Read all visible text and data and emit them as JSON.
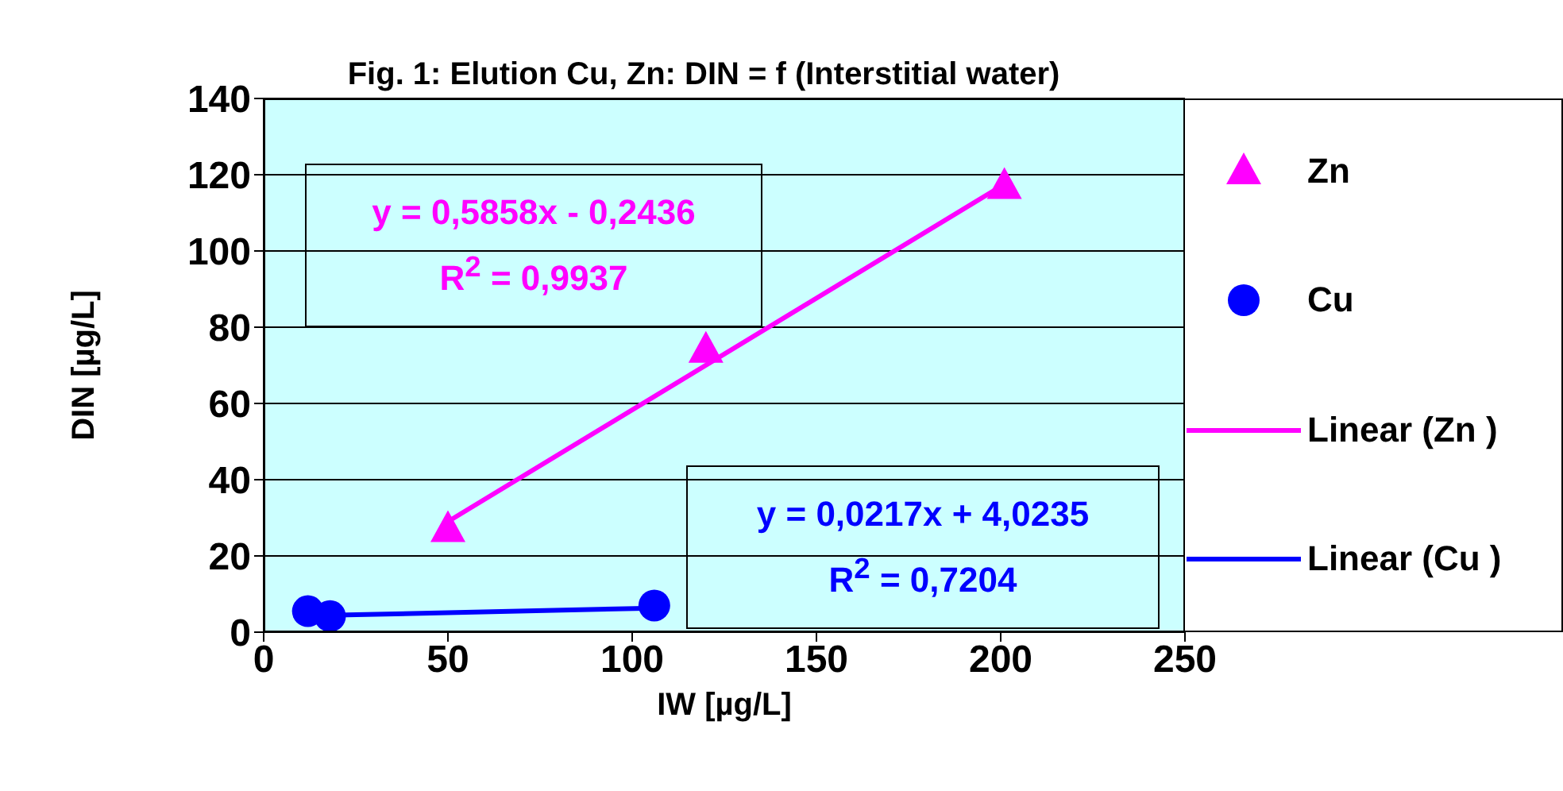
{
  "chart_data": {
    "type": "scatter",
    "title": "Fig. 1: Elution Cu, Zn: DIN = f (Interstitial water)",
    "xlabel": "IW [µg/L]",
    "ylabel": "DIN [µg/L]",
    "series": [
      {
        "name": "Zn",
        "color": "#ff00ff",
        "marker": "triangle",
        "x": [
          50,
          120,
          201
        ],
        "values": [
          27,
          74,
          117
        ]
      },
      {
        "name": "Cu",
        "color": "#0000ff",
        "marker": "circle",
        "x": [
          12,
          18,
          106
        ],
        "values": [
          5.5,
          4.2,
          7
        ]
      },
      {
        "name": "Linear (Zn )",
        "type": "line",
        "color": "#ff00ff",
        "x": [
          50,
          201
        ],
        "values": [
          29,
          117.5
        ]
      },
      {
        "name": "Linear (Cu )",
        "type": "line",
        "color": "#0000ff",
        "x": [
          12,
          106
        ],
        "values": [
          4.3,
          6.3
        ]
      }
    ],
    "annotations": [
      "y = 0,5858x - 0,2436",
      "R$^{2}$ = 0,9937",
      "y = 0,0217x + 4,0235",
      "R$^{2}$ = 0,7204"
    ],
    "xlim": [
      0,
      250
    ],
    "xticks": [
      0,
      50,
      100,
      150,
      200,
      250
    ],
    "ylim": [
      0,
      140
    ],
    "yticks": [
      0,
      20,
      40,
      60,
      80,
      100,
      120,
      140
    ],
    "grid": "y",
    "legend": "right"
  }
}
